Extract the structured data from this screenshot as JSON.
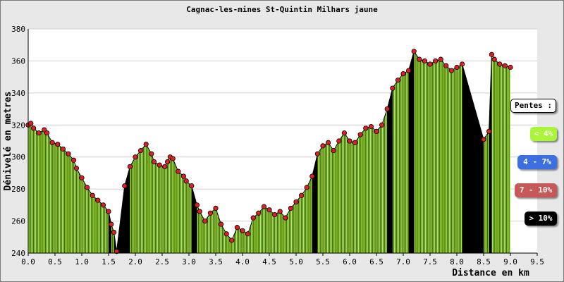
{
  "chart_data": {
    "type": "area",
    "title": "Cagnac-les-mines St-Quintin Milhars jaune",
    "xlabel": "Distance en km",
    "ylabel": "Dénivelé en metres",
    "xlim": [
      0,
      9.5
    ],
    "ylim": [
      240,
      380
    ],
    "x_ticks": [
      "0.0",
      "0.5",
      "1.0",
      "1.5",
      "2.0",
      "2.5",
      "3.0",
      "3.5",
      "4.0",
      "4.5",
      "5.0",
      "5.5",
      "6.0",
      "6.5",
      "7.0",
      "7.5",
      "8.0",
      "8.5",
      "9.0",
      "9.5"
    ],
    "y_ticks": [
      "240",
      "260",
      "280",
      "300",
      "320",
      "340",
      "360",
      "380"
    ],
    "grid": "horizontal",
    "series": [
      {
        "x": [
          0.0,
          0.05,
          0.1,
          0.2,
          0.3,
          0.35,
          0.45,
          0.55,
          0.65,
          0.75,
          0.85,
          0.9,
          1.0,
          1.1,
          1.2,
          1.3,
          1.4,
          1.5,
          1.55,
          1.6,
          1.65,
          1.8,
          1.9,
          2.0,
          2.1,
          2.2,
          2.3,
          2.35,
          2.45,
          2.55,
          2.6,
          2.65,
          2.7,
          2.8,
          2.9,
          2.95,
          3.05,
          3.15,
          3.2,
          3.3,
          3.4,
          3.5,
          3.6,
          3.7,
          3.8,
          3.9,
          4.0,
          4.1,
          4.2,
          4.3,
          4.4,
          4.5,
          4.6,
          4.7,
          4.8,
          4.9,
          5.0,
          5.1,
          5.2,
          5.3,
          5.4,
          5.5,
          5.6,
          5.7,
          5.8,
          5.9,
          6.0,
          6.1,
          6.2,
          6.3,
          6.4,
          6.5,
          6.6,
          6.7,
          6.8,
          6.9,
          7.0,
          7.1,
          7.2,
          7.3,
          7.4,
          7.5,
          7.6,
          7.7,
          7.8,
          7.9,
          8.0,
          8.1,
          8.5,
          8.6,
          8.65,
          8.7,
          8.8,
          8.9,
          9.0
        ],
        "y": [
          320,
          321,
          318,
          315,
          317,
          315,
          309,
          308,
          305,
          302,
          298,
          293,
          287,
          281,
          276,
          273,
          270,
          266,
          258,
          253,
          241,
          282,
          294,
          300,
          304,
          308,
          302,
          297,
          295,
          294,
          297,
          300,
          299,
          291,
          288,
          285,
          282,
          270,
          266,
          260,
          265,
          268,
          258,
          252,
          248,
          256,
          254,
          252,
          262,
          265,
          269,
          267,
          264,
          266,
          262,
          268,
          272,
          276,
          281,
          288,
          302,
          307,
          309,
          304,
          310,
          315,
          310,
          309,
          314,
          318,
          319,
          316,
          320,
          330,
          343,
          348,
          352,
          354,
          366,
          361,
          360,
          358,
          360,
          361,
          357,
          354,
          356,
          358,
          311,
          316,
          364,
          361,
          358,
          357,
          356
        ]
      }
    ],
    "legend": {
      "title": "Pentes :",
      "entries": [
        "< 4%",
        "4 - 7%",
        "7 - 10%",
        "> 10%"
      ],
      "colors": [
        "#aaf53a",
        "#3d6fe0",
        "#c85858",
        "#000000"
      ]
    },
    "colors": {
      "fill_shallow": "#aaf53a",
      "fill_steep": "#000000",
      "marker": "#e02020",
      "grid": "#cfcfcf",
      "background": "#e8e8e8",
      "plot_background": "#ffffff"
    }
  }
}
